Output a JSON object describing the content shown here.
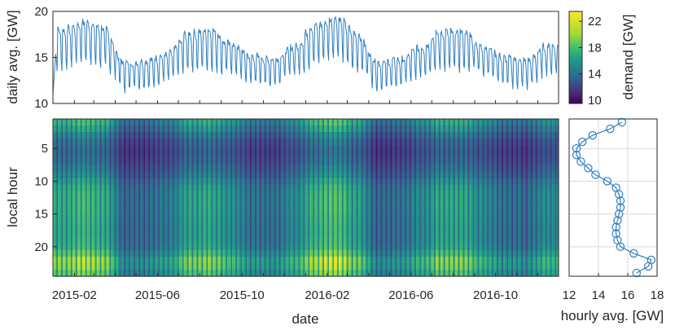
{
  "colors": {
    "line": "#2f7fc1",
    "axis": "#262626",
    "grid": "#d9d9d9"
  },
  "colormap": "viridis",
  "chart_data": [
    {
      "type": "line",
      "xlabel": "",
      "ylabel": "daily avg. [GW]",
      "ylim": [
        10,
        20
      ],
      "yticks": [
        10,
        15,
        20
      ],
      "xlim": [
        "2015-01-01",
        "2016-12-31"
      ],
      "grid": false,
      "x_monthly": [
        "2015-01",
        "2015-02",
        "2015-03",
        "2015-04",
        "2015-05",
        "2015-06",
        "2015-07",
        "2015-08",
        "2015-09",
        "2015-10",
        "2015-11",
        "2015-12",
        "2016-01",
        "2016-02",
        "2016-03",
        "2016-04",
        "2016-05",
        "2016-06",
        "2016-07",
        "2016-08",
        "2016-09",
        "2016-10",
        "2016-11",
        "2016-12"
      ],
      "series": [
        {
          "values": [
            16.8,
            17.6,
            17.0,
            13.6,
            13.8,
            14.5,
            16.4,
            16.8,
            15.6,
            14.3,
            14.0,
            15.3,
            17.3,
            18.1,
            16.4,
            13.6,
            13.9,
            15.2,
            16.6,
            16.6,
            15.3,
            14.1,
            13.8,
            15.4
          ]
        }
      ]
    },
    {
      "type": "heatmap",
      "xlabel": "date",
      "ylabel": "local hour",
      "x_range": [
        "2015-01-01",
        "2016-12-31"
      ],
      "xtick_labels": [
        "2015-02",
        "2015-06",
        "2015-10",
        "2016-02",
        "2016-06",
        "2016-10"
      ],
      "y_range": [
        1,
        24
      ],
      "ytick_values": [
        5,
        10,
        15,
        20
      ],
      "colorbar": {
        "label": "demand [GW]",
        "ticks": [
          10,
          14,
          18,
          22
        ],
        "range": [
          9.5,
          23.5
        ]
      }
    },
    {
      "type": "line",
      "xlabel": "hourly avg. [GW]",
      "ylabel": "",
      "xlim": [
        12,
        18
      ],
      "xticks": [
        12,
        14,
        16,
        18
      ],
      "y_range": [
        1,
        24
      ],
      "grid": true,
      "marker": "circle",
      "hours": [
        1,
        2,
        3,
        4,
        5,
        6,
        7,
        8,
        9,
        10,
        11,
        12,
        13,
        14,
        15,
        16,
        17,
        18,
        19,
        20,
        21,
        22,
        23,
        24
      ],
      "values": [
        15.6,
        14.8,
        13.6,
        12.9,
        12.5,
        12.5,
        12.8,
        13.3,
        13.8,
        14.6,
        15.2,
        15.4,
        15.5,
        15.5,
        15.4,
        15.3,
        15.2,
        15.2,
        15.3,
        15.5,
        16.4,
        17.6,
        17.4,
        16.6
      ]
    }
  ]
}
